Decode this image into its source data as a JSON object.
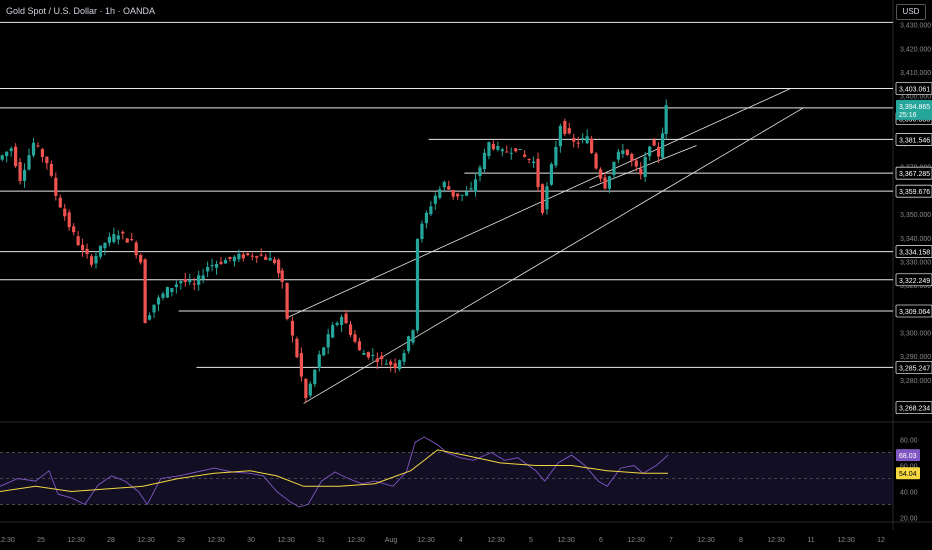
{
  "header": {
    "title": "Gold Spot / U.S. Dollar · 1h · OANDA",
    "currency": "USD"
  },
  "colors": {
    "background": "#000000",
    "up": "#26a69a",
    "down": "#ef5350",
    "rsi_line": "#7e57c2",
    "rsi_ma": "#f5d742",
    "rsi_band": "#1a1433",
    "level_line": "#e8e8e8"
  },
  "chart_data": {
    "type": "candlestick",
    "title": "Gold Spot / U.S. Dollar · 1h · OANDA",
    "ylim": [
      3263,
      3432
    ],
    "y_ticks": [
      3280,
      3290,
      3300,
      3310,
      3320,
      3330,
      3340,
      3350,
      3360,
      3370,
      3380,
      3390,
      3400,
      3410,
      3420,
      3430
    ],
    "y_tick_labels": [
      "3,280.000",
      "3,290.000",
      "3,300.000",
      "3,310.000",
      "3,320.000",
      "3,330.000",
      "3,340.000",
      "3,350.000",
      "3,360.000",
      "3,370.000",
      "3,380.000",
      "3,390.000",
      "3,400.000",
      "3,410.000",
      "3,420.000",
      "3,430.000"
    ],
    "x_ticks": [
      "12:30",
      "25",
      "12:30",
      "28",
      "12:30",
      "29",
      "12:30",
      "30",
      "12:30",
      "31",
      "12:30",
      "Aug",
      "12:30",
      "4",
      "12:30",
      "5",
      "12:30",
      "6",
      "12:30",
      "7",
      "12:30",
      "8",
      "12:30",
      "11",
      "12:30",
      "12"
    ],
    "price_labels": [
      {
        "label": "3,403.061",
        "value": 3403.061
      },
      {
        "label": "3,390.383",
        "value": 3390.383
      },
      {
        "label": "3,381.546",
        "value": 3381.546
      },
      {
        "label": "3,367.285",
        "value": 3367.285
      },
      {
        "label": "3,359.676",
        "value": 3359.676
      },
      {
        "label": "3,334.158",
        "value": 3334.158
      },
      {
        "label": "3,322.249",
        "value": 3322.249
      },
      {
        "label": "3,309.064",
        "value": 3309.064
      },
      {
        "label": "3,285.247",
        "value": 3285.247
      },
      {
        "label": "3,268.234",
        "value": 3268.234
      }
    ],
    "current_price": {
      "price": "3,394.865",
      "countdown": "25:16",
      "value": 3394.865
    },
    "horizontal_levels": [
      {
        "value": 3431,
        "x_from": 0,
        "x_to": 1
      },
      {
        "value": 3403.061,
        "x_from": 0,
        "x_to": 1
      },
      {
        "value": 3394.865,
        "x_from": 0,
        "x_to": 1
      },
      {
        "value": 3381.546,
        "x_from": 0.48,
        "x_to": 1
      },
      {
        "value": 3367.285,
        "x_from": 0.52,
        "x_to": 1
      },
      {
        "value": 3359.676,
        "x_from": 0,
        "x_to": 1
      },
      {
        "value": 3334.158,
        "x_from": 0,
        "x_to": 1
      },
      {
        "value": 3322.249,
        "x_from": 0,
        "x_to": 1
      },
      {
        "value": 3309.064,
        "x_from": 0.2,
        "x_to": 1
      },
      {
        "value": 3285.247,
        "x_from": 0.22,
        "x_to": 1
      }
    ],
    "trendlines": [
      {
        "x1": 0.32,
        "y1": 3306,
        "x2": 0.885,
        "y2": 3403
      },
      {
        "x1": 0.34,
        "y1": 3270,
        "x2": 0.9,
        "y2": 3395
      },
      {
        "x1": 0.66,
        "y1": 3361,
        "x2": 0.78,
        "y2": 3379
      }
    ],
    "price_points": [
      [
        0,
        3373
      ],
      [
        0.015,
        3378
      ],
      [
        0.025,
        3365
      ],
      [
        0.04,
        3380
      ],
      [
        0.055,
        3372
      ],
      [
        0.065,
        3358
      ],
      [
        0.08,
        3345
      ],
      [
        0.095,
        3334
      ],
      [
        0.105,
        3330
      ],
      [
        0.12,
        3338
      ],
      [
        0.135,
        3342
      ],
      [
        0.15,
        3338
      ],
      [
        0.16,
        3330
      ],
      [
        0.165,
        3305
      ],
      [
        0.175,
        3312
      ],
      [
        0.19,
        3318
      ],
      [
        0.205,
        3322
      ],
      [
        0.22,
        3320
      ],
      [
        0.235,
        3328
      ],
      [
        0.25,
        3330
      ],
      [
        0.27,
        3332
      ],
      [
        0.29,
        3333
      ],
      [
        0.31,
        3330
      ],
      [
        0.318,
        3320
      ],
      [
        0.325,
        3306
      ],
      [
        0.335,
        3290
      ],
      [
        0.345,
        3272
      ],
      [
        0.36,
        3290
      ],
      [
        0.375,
        3302
      ],
      [
        0.385,
        3307
      ],
      [
        0.395,
        3300
      ],
      [
        0.405,
        3292
      ],
      [
        0.42,
        3290
      ],
      [
        0.43,
        3288
      ],
      [
        0.445,
        3286
      ],
      [
        0.455,
        3292
      ],
      [
        0.465,
        3302
      ],
      [
        0.47,
        3340
      ],
      [
        0.48,
        3350
      ],
      [
        0.49,
        3358
      ],
      [
        0.5,
        3363
      ],
      [
        0.51,
        3358
      ],
      [
        0.52,
        3358
      ],
      [
        0.53,
        3360
      ],
      [
        0.54,
        3370
      ],
      [
        0.55,
        3380
      ],
      [
        0.565,
        3376
      ],
      [
        0.58,
        3378
      ],
      [
        0.59,
        3374
      ],
      [
        0.6,
        3372
      ],
      [
        0.61,
        3352
      ],
      [
        0.62,
        3370
      ],
      [
        0.63,
        3388
      ],
      [
        0.645,
        3380
      ],
      [
        0.66,
        3382
      ],
      [
        0.67,
        3370
      ],
      [
        0.68,
        3362
      ],
      [
        0.69,
        3372
      ],
      [
        0.7,
        3378
      ],
      [
        0.71,
        3372
      ],
      [
        0.72,
        3366
      ],
      [
        0.73,
        3380
      ],
      [
        0.74,
        3375
      ],
      [
        0.748,
        3395
      ]
    ],
    "rsi": {
      "levels": [
        "80.00",
        "60.00",
        "40.00",
        "20.00"
      ],
      "level_values": [
        80,
        60,
        40,
        20
      ],
      "ylim": [
        18,
        92
      ],
      "current": "68.03",
      "current_value": 68.03,
      "ma_current": "54.04",
      "ma_current_value": 54.04,
      "bands": [
        70,
        50,
        30
      ],
      "rsi_points": [
        [
          0,
          44
        ],
        [
          0.02,
          50
        ],
        [
          0.04,
          48
        ],
        [
          0.055,
          56
        ],
        [
          0.065,
          38
        ],
        [
          0.08,
          35
        ],
        [
          0.095,
          30
        ],
        [
          0.11,
          45
        ],
        [
          0.125,
          52
        ],
        [
          0.14,
          48
        ],
        [
          0.155,
          40
        ],
        [
          0.165,
          30
        ],
        [
          0.18,
          50
        ],
        [
          0.2,
          52
        ],
        [
          0.22,
          55
        ],
        [
          0.24,
          58
        ],
        [
          0.26,
          55
        ],
        [
          0.28,
          54
        ],
        [
          0.295,
          52
        ],
        [
          0.31,
          40
        ],
        [
          0.325,
          32
        ],
        [
          0.335,
          28
        ],
        [
          0.345,
          30
        ],
        [
          0.36,
          48
        ],
        [
          0.375,
          55
        ],
        [
          0.39,
          50
        ],
        [
          0.405,
          46
        ],
        [
          0.42,
          48
        ],
        [
          0.44,
          44
        ],
        [
          0.455,
          55
        ],
        [
          0.465,
          78
        ],
        [
          0.475,
          82
        ],
        [
          0.49,
          76
        ],
        [
          0.5,
          70
        ],
        [
          0.515,
          66
        ],
        [
          0.53,
          64
        ],
        [
          0.55,
          70
        ],
        [
          0.565,
          64
        ],
        [
          0.58,
          66
        ],
        [
          0.6,
          56
        ],
        [
          0.61,
          48
        ],
        [
          0.625,
          62
        ],
        [
          0.64,
          68
        ],
        [
          0.655,
          60
        ],
        [
          0.67,
          48
        ],
        [
          0.68,
          44
        ],
        [
          0.695,
          58
        ],
        [
          0.71,
          60
        ],
        [
          0.72,
          54
        ],
        [
          0.735,
          60
        ],
        [
          0.748,
          68
        ]
      ],
      "ma_points": [
        [
          0,
          40
        ],
        [
          0.04,
          44
        ],
        [
          0.08,
          40
        ],
        [
          0.12,
          42
        ],
        [
          0.16,
          44
        ],
        [
          0.2,
          50
        ],
        [
          0.24,
          54
        ],
        [
          0.28,
          56
        ],
        [
          0.31,
          52
        ],
        [
          0.34,
          44
        ],
        [
          0.38,
          44
        ],
        [
          0.42,
          46
        ],
        [
          0.46,
          56
        ],
        [
          0.49,
          72
        ],
        [
          0.52,
          68
        ],
        [
          0.56,
          62
        ],
        [
          0.6,
          60
        ],
        [
          0.64,
          60
        ],
        [
          0.68,
          56
        ],
        [
          0.72,
          54
        ],
        [
          0.748,
          54
        ]
      ]
    }
  }
}
